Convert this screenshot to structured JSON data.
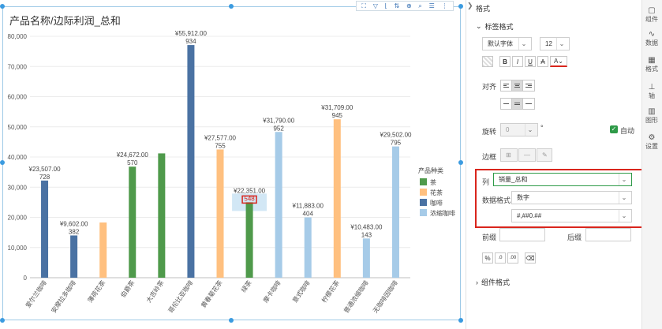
{
  "chart_data": {
    "type": "bar",
    "title": "产品名称/边际利润_总和",
    "categories": [
      "爱尔兰咖啡",
      "安摩拉多咖啡",
      "薄荷花茶",
      "伯爵茶",
      "大吉岭茶",
      "哥伦比亚咖啡",
      "黄春菊花茶",
      "绿茶",
      "摩卡咖啡",
      "意式咖啡",
      "柠檬花茶",
      "普通浓缩咖啡",
      "无咖啡因咖啡"
    ],
    "ylim": [
      0,
      80000
    ],
    "yticks": [
      "0",
      "10,000",
      "20,000",
      "30,000",
      "40,000",
      "50,000",
      "60,000",
      "70,000",
      "80,000"
    ],
    "values": [
      32200,
      14000,
      18300,
      36800,
      41200,
      77100,
      42500,
      25000,
      48300,
      20000,
      52500,
      13000,
      43500
    ],
    "groups": [
      "咖啡",
      "咖啡",
      "花茶",
      "茶",
      "茶",
      "咖啡",
      "花茶",
      "茶",
      "浓缩咖啡",
      "浓缩咖啡",
      "花茶",
      "浓缩咖啡",
      "浓缩咖啡"
    ],
    "value_labels": [
      "¥23,507.00",
      "¥9,602.00",
      "",
      "¥24,672.00",
      "",
      "¥55,912.00",
      "¥27,577.00",
      "¥22,351.00",
      "¥31,790.00",
      "¥11,883.00",
      "¥31,709.00",
      "¥10,483.00",
      "¥29,502.00"
    ],
    "count_labels": [
      "728",
      "382",
      "",
      "570",
      "",
      "934",
      "755",
      "548",
      "952",
      "404",
      "945",
      "143",
      "795"
    ],
    "legend_title": "产品种类",
    "legend": [
      {
        "name": "茶",
        "color": "#4f9a4b"
      },
      {
        "name": "花茶",
        "color": "#ffc07f"
      },
      {
        "name": "咖啡",
        "color": "#4a72a3"
      },
      {
        "name": "浓缩咖啡",
        "color": "#a6cbe8"
      }
    ],
    "selected_index": 7,
    "legend_placement": "right"
  },
  "panel": {
    "title": "格式",
    "label_format_section": "标签格式",
    "font_family": "默认字体",
    "font_size": "12",
    "align_label": "对齐",
    "rotate_label": "旋转",
    "rotate_value": "0",
    "degree_symbol": "°",
    "auto_label": "自动",
    "border_label": "边框",
    "column_label": "列",
    "column_value": "销量_总和",
    "data_format_label": "数据格式",
    "data_format_value": "数字",
    "number_pattern": "#,##0.##",
    "prefix_label": "前缀",
    "suffix_label": "后缀",
    "component_format_section": "组件格式"
  },
  "rail": {
    "items": [
      {
        "label": "组件",
        "icon": "component-icon",
        "glyph": "▢"
      },
      {
        "label": "数据",
        "icon": "data-icon",
        "glyph": "∿"
      },
      {
        "label": "格式",
        "icon": "format-icon",
        "glyph": "▦"
      },
      {
        "label": "轴",
        "icon": "axis-icon",
        "glyph": "⊥"
      },
      {
        "label": "图形",
        "icon": "graph-icon",
        "glyph": "▥"
      },
      {
        "label": "设置",
        "icon": "settings-icon",
        "glyph": "⚙"
      }
    ]
  },
  "colors": {
    "accent_red": "#d9251c",
    "selection_blue": "#3b9be0",
    "check_green": "#2e9a48"
  }
}
